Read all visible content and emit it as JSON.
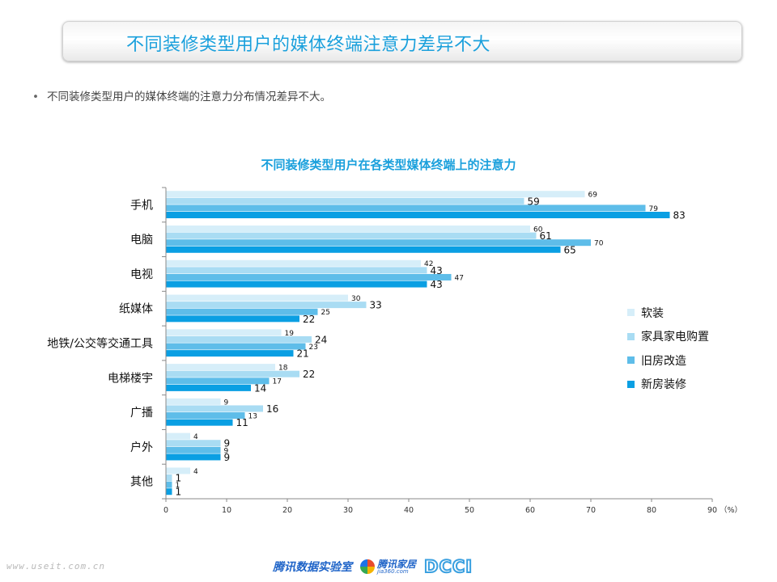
{
  "slide": {
    "title": "不同装修类型用户的媒体终端注意力差异不大",
    "bullet": "不同装修类型用户的媒体终端的注意力分布情况差异不大。",
    "footer_url": "www.useit.com.cn",
    "logos": {
      "tencent_lab": "腾讯数据实验室",
      "jiaju_name": "腾讯家居",
      "jiaju_sub": "jia360.com",
      "dcci": "DCCI"
    }
  },
  "chart_data": {
    "type": "bar",
    "orientation": "horizontal",
    "title": "不同装修类型用户在各类型媒体终端上的注意力",
    "categories": [
      "手机",
      "电脑",
      "电视",
      "纸媒体",
      "地铁/公交等交通工具",
      "电梯楼宇",
      "广播",
      "户外",
      "其他"
    ],
    "series": [
      {
        "name": "软装",
        "color": "#d6eef9",
        "values": [
          69,
          60,
          42,
          30,
          19,
          18,
          9,
          4,
          4
        ]
      },
      {
        "name": "家具家电购置",
        "color": "#a9dcf3",
        "values": [
          59,
          61,
          43,
          33,
          24,
          22,
          16,
          9,
          1
        ]
      },
      {
        "name": "旧房改造",
        "color": "#5ebde9",
        "values": [
          79,
          70,
          47,
          25,
          23,
          17,
          13,
          9,
          1
        ]
      },
      {
        "name": "新房装修",
        "color": "#0a9fe3",
        "values": [
          83,
          65,
          43,
          22,
          21,
          14,
          11,
          9,
          1
        ]
      }
    ],
    "label_sizes": [
      [
        9,
        12,
        9,
        12
      ],
      [
        9,
        12,
        9,
        12
      ],
      [
        9,
        12,
        9,
        12
      ],
      [
        9,
        12,
        9,
        12
      ],
      [
        9,
        12,
        9,
        12
      ],
      [
        9,
        12,
        9,
        12
      ],
      [
        9,
        12,
        9,
        12
      ],
      [
        9,
        12,
        9,
        12
      ],
      [
        9,
        12,
        9,
        12
      ]
    ],
    "xlim": [
      0,
      90
    ],
    "xticks": [
      0,
      10,
      20,
      30,
      40,
      50,
      60,
      70,
      80,
      90
    ],
    "x_unit": "（%）",
    "legend_position": "right",
    "grid": false
  }
}
